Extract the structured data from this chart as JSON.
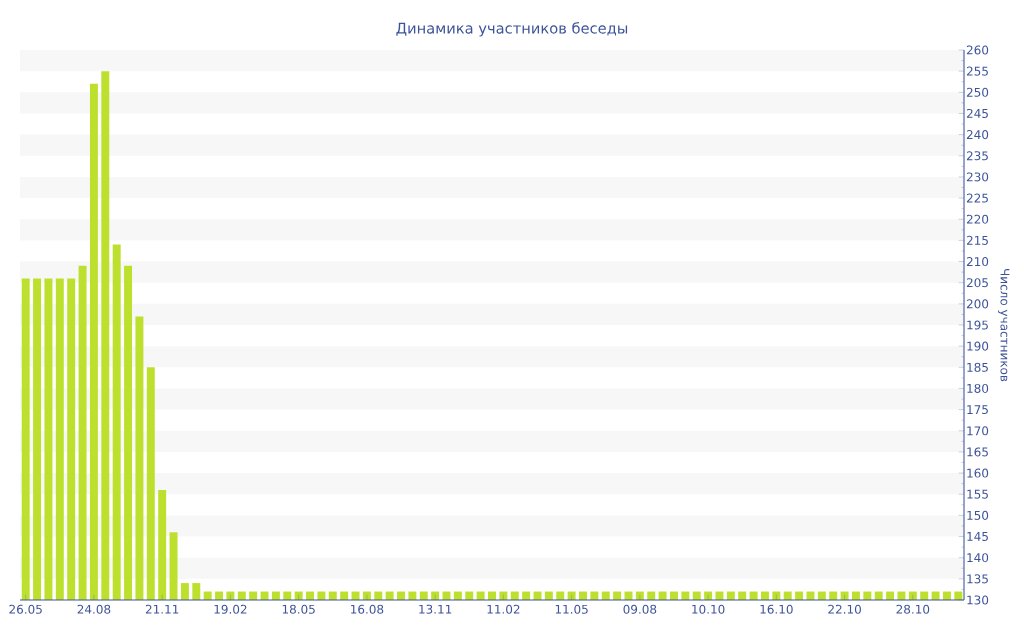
{
  "chart_data": {
    "type": "bar",
    "title": "Динамика участников беседы",
    "ylabel": "Число участников",
    "categories": [
      "26.05",
      null,
      null,
      null,
      null,
      null,
      "24.08",
      null,
      null,
      null,
      null,
      null,
      "21.11",
      null,
      null,
      null,
      null,
      null,
      "19.02",
      null,
      null,
      null,
      null,
      null,
      "18.05",
      null,
      null,
      null,
      null,
      null,
      "16.08",
      null,
      null,
      null,
      null,
      null,
      "13.11",
      null,
      null,
      null,
      null,
      null,
      "11.02",
      null,
      null,
      null,
      null,
      null,
      "11.05",
      null,
      null,
      null,
      null,
      null,
      "09.08",
      null,
      null,
      null,
      null,
      null,
      "10.10",
      null,
      null,
      null,
      null,
      null,
      "16.10",
      null,
      null,
      null,
      null,
      null,
      "22.10",
      null,
      null,
      null,
      null,
      null,
      "28.10",
      null,
      null,
      null,
      null
    ],
    "values": [
      206,
      206,
      206,
      206,
      206,
      209,
      252,
      255,
      214,
      209,
      197,
      185,
      156,
      146,
      134,
      134,
      132,
      132,
      132,
      132,
      132,
      132,
      132,
      132,
      132,
      132,
      132,
      132,
      132,
      132,
      132,
      132,
      132,
      132,
      132,
      132,
      132,
      132,
      132,
      132,
      132,
      132,
      132,
      132,
      132,
      132,
      132,
      132,
      132,
      132,
      132,
      132,
      132,
      132,
      132,
      132,
      132,
      132,
      132,
      132,
      132,
      132,
      132,
      132,
      132,
      132,
      132,
      132,
      132,
      132,
      132,
      132,
      132,
      132,
      132,
      132,
      132,
      132,
      132,
      132,
      132,
      132,
      132
    ],
    "color": "#bde02f",
    "ylim": [
      130,
      260
    ],
    "yticks": [
      130,
      135,
      140,
      145,
      150,
      155,
      160,
      165,
      170,
      175,
      180,
      185,
      190,
      195,
      200,
      205,
      210,
      215,
      220,
      225,
      230,
      235,
      240,
      245,
      250,
      255,
      260
    ],
    "bands": [
      {
        "axis": "y",
        "from": 135,
        "to": 140,
        "color": "#f7f7f7"
      },
      {
        "axis": "y",
        "from": 145,
        "to": 150,
        "color": "#f7f7f7"
      },
      {
        "axis": "y",
        "from": 155,
        "to": 160,
        "color": "#f7f7f7"
      },
      {
        "axis": "y",
        "from": 165,
        "to": 170,
        "color": "#f7f7f7"
      },
      {
        "axis": "y",
        "from": 175,
        "to": 180,
        "color": "#f7f7f7"
      },
      {
        "axis": "y",
        "from": 185,
        "to": 190,
        "color": "#f7f7f7"
      },
      {
        "axis": "y",
        "from": 195,
        "to": 200,
        "color": "#f7f7f7"
      },
      {
        "axis": "y",
        "from": 205,
        "to": 210,
        "color": "#f7f7f7"
      },
      {
        "axis": "y",
        "from": 215,
        "to": 220,
        "color": "#f7f7f7"
      },
      {
        "axis": "y",
        "from": 225,
        "to": 230,
        "color": "#f7f7f7"
      },
      {
        "axis": "y",
        "from": 235,
        "to": 240,
        "color": "#f7f7f7"
      },
      {
        "axis": "y",
        "from": 245,
        "to": 250,
        "color": "#f7f7f7"
      },
      {
        "axis": "y",
        "from": 255,
        "to": 260,
        "color": "#f7f7f7"
      }
    ]
  }
}
